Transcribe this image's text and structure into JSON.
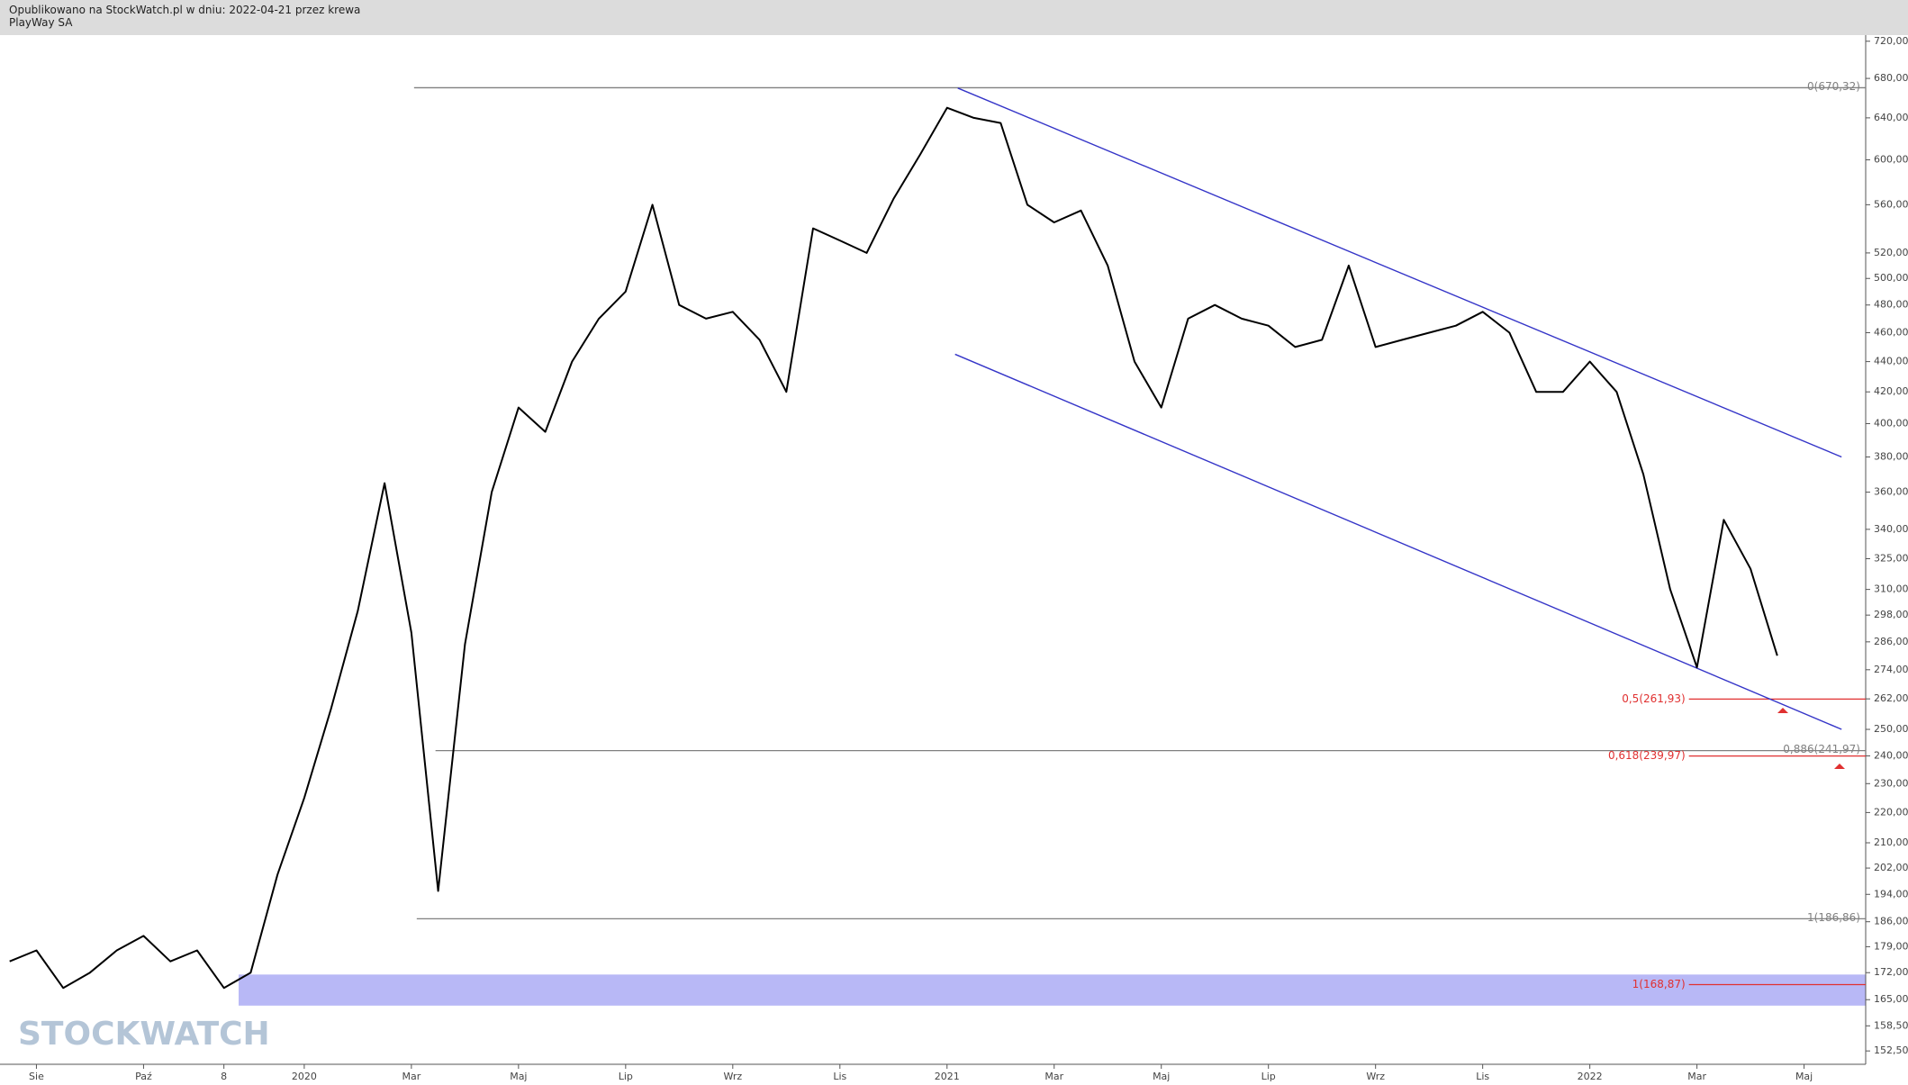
{
  "header": {
    "line1": "Opublikowano na StockWatch.pl w dniu: 2022-04-21 przez krewa",
    "line2": "PlayWay SA"
  },
  "watermark": "STOCKWATCH",
  "chart_data": {
    "type": "line",
    "categories": [
      null,
      "Sie",
      null,
      null,
      null,
      "Paź",
      null,
      null,
      "8",
      null,
      null,
      "2020",
      null,
      null,
      null,
      "Mar",
      null,
      null,
      null,
      "Maj",
      null,
      null,
      null,
      "Lip",
      null,
      null,
      null,
      "Wrz",
      null,
      null,
      null,
      "Lis",
      null,
      null,
      null,
      "2021",
      null,
      null,
      null,
      "Mar",
      null,
      null,
      null,
      "Maj",
      null,
      null,
      null,
      "Lip",
      null,
      null,
      null,
      "Wrz",
      null,
      null,
      null,
      "Lis",
      null,
      null,
      null,
      "2022",
      null,
      null,
      null,
      "Mar",
      null,
      null,
      null,
      "Maj"
    ],
    "values": [
      175,
      178,
      168,
      172,
      178,
      182,
      175,
      178,
      168,
      172,
      200,
      225,
      258,
      300,
      365,
      290,
      195,
      285,
      360,
      410,
      395,
      440,
      470,
      490,
      560,
      480,
      470,
      475,
      455,
      420,
      540,
      530,
      520,
      565,
      605,
      650,
      640,
      635,
      560,
      545,
      555,
      510,
      440,
      410,
      470,
      480,
      470,
      465,
      450,
      455,
      510,
      450,
      455,
      460,
      465,
      475,
      460,
      420,
      420,
      440,
      420,
      370,
      310,
      275,
      345,
      320,
      280,
      null
    ],
    "color": "#000000",
    "xlim": [
      -0.36,
      69.3
    ],
    "ylim": [
      149.4,
      726.8
    ],
    "log_scale": true,
    "yticks": [
      {
        "value": 720,
        "label": "720,00"
      },
      {
        "value": 680,
        "label": "680,00"
      },
      {
        "value": 640,
        "label": "640,00"
      },
      {
        "value": 600,
        "label": "600,00"
      },
      {
        "value": 560,
        "label": "560,00"
      },
      {
        "value": 520,
        "label": "520,00"
      },
      {
        "value": 500,
        "label": "500,00"
      },
      {
        "value": 480,
        "label": "480,00"
      },
      {
        "value": 460,
        "label": "460,00"
      },
      {
        "value": 440,
        "label": "440,00"
      },
      {
        "value": 420,
        "label": "420,00"
      },
      {
        "value": 400,
        "label": "400,00"
      },
      {
        "value": 380,
        "label": "380,00"
      },
      {
        "value": 360,
        "label": "360,00"
      },
      {
        "value": 340,
        "label": "340,00"
      },
      {
        "value": 325,
        "label": "325,00"
      },
      {
        "value": 310,
        "label": "310,00"
      },
      {
        "value": 298,
        "label": "298,00"
      },
      {
        "value": 286,
        "label": "286,00"
      },
      {
        "value": 274,
        "label": "274,00"
      },
      {
        "value": 262,
        "label": "262,00"
      },
      {
        "value": 250,
        "label": "250,00"
      },
      {
        "value": 240,
        "label": "240,00"
      },
      {
        "value": 230,
        "label": "230,00"
      },
      {
        "value": 220,
        "label": "220,00"
      },
      {
        "value": 210,
        "label": "210,00"
      },
      {
        "value": 202,
        "label": "202,00"
      },
      {
        "value": 194,
        "label": "194,00"
      },
      {
        "value": 186,
        "label": "186,00"
      },
      {
        "value": 179,
        "label": "179,00"
      },
      {
        "value": 172,
        "label": "172,00"
      },
      {
        "value": 165,
        "label": "165,00"
      },
      {
        "value": 158.5,
        "label": "158,50"
      },
      {
        "value": 152.5,
        "label": "152,50"
      }
    ],
    "levels": [
      {
        "label": "0(670,32)",
        "value": 670.32,
        "x_start": 15.1,
        "color": "#808080"
      },
      {
        "label": "1(186,86)",
        "value": 186.86,
        "x_start": 15.2,
        "color": "#808080"
      },
      {
        "label": "0,886(241,97)",
        "value": 241.97,
        "x_start": 15.9,
        "color": "#808080"
      },
      {
        "label": "0,5(261,93)",
        "value": 261.93,
        "x_start": 62.7,
        "color": "#e03030"
      },
      {
        "label": "0,618(239,97)",
        "value": 239.97,
        "x_start": 62.7,
        "color": "#e03030"
      },
      {
        "label": "1(168,87)",
        "value": 168.87,
        "x_start": 62.7,
        "color": "#e03030"
      }
    ],
    "channel": [
      {
        "x": [
          35.4,
          68.4
        ],
        "values": [
          670,
          380
        ],
        "color": "#3535c8"
      },
      {
        "x": [
          35.3,
          68.4
        ],
        "values": [
          445,
          250
        ],
        "color": "#3535c8"
      }
    ],
    "zone": {
      "range": [
        163.5,
        171.5
      ],
      "x_start": 8.55,
      "color": "#b8b8f6"
    }
  }
}
